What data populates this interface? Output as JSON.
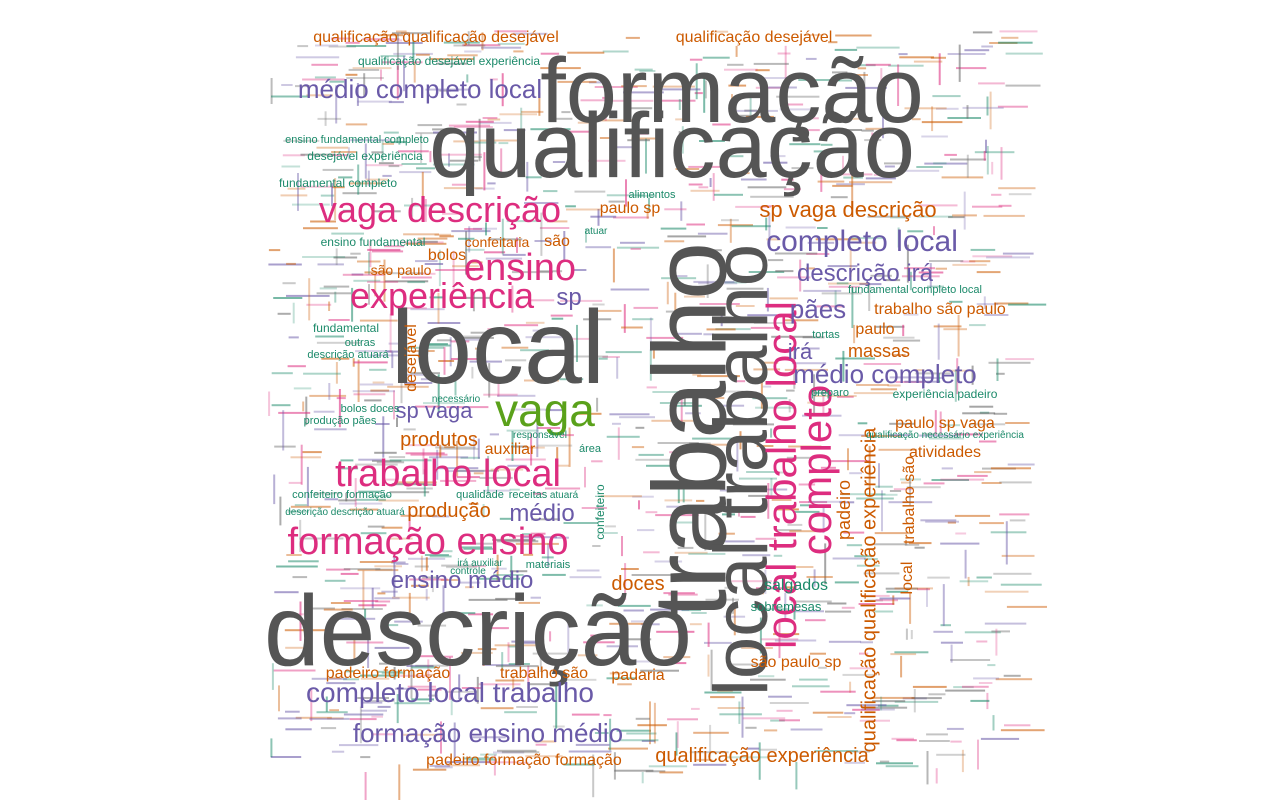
{
  "palette": {
    "gray": "#555555",
    "purple": "#6a5aa8",
    "magenta": "#dd2d7f",
    "green": "#5aa11a",
    "orange": "#cc5a00",
    "teal": "#1c8a6a"
  },
  "words": [
    {
      "id": "formacao",
      "text": "formação",
      "color": "gray"
    },
    {
      "id": "qualificacao",
      "text": "qualificação",
      "color": "gray"
    },
    {
      "id": "local",
      "text": "local",
      "color": "gray"
    },
    {
      "id": "descricao",
      "text": "descrição",
      "color": "gray"
    },
    {
      "id": "trabalho",
      "text": "trabalho",
      "color": "gray"
    },
    {
      "id": "local-trabalho-gray",
      "text": "local trabalho",
      "color": "gray"
    },
    {
      "id": "local-trabalho-local",
      "text": "local trabalho local",
      "color": "magenta"
    },
    {
      "id": "vaga",
      "text": "vaga",
      "color": "green"
    },
    {
      "id": "vaga-descricao",
      "text": "vaga descrição",
      "color": "magenta"
    },
    {
      "id": "ensino",
      "text": "ensino",
      "color": "magenta"
    },
    {
      "id": "experiencia",
      "text": "experiência",
      "color": "magenta"
    },
    {
      "id": "trabalho-local",
      "text": "trabalho local",
      "color": "magenta"
    },
    {
      "id": "formacao-ensino",
      "text": "formação ensino",
      "color": "magenta"
    },
    {
      "id": "completo",
      "text": "completo",
      "color": "magenta"
    },
    {
      "id": "completo-local",
      "text": "completo local",
      "color": "purple"
    },
    {
      "id": "completo-local-trabalho",
      "text": "completo local trabalho",
      "color": "purple"
    },
    {
      "id": "formacao-ensino-medio",
      "text": "formação ensino médio",
      "color": "purple"
    },
    {
      "id": "medio-completo-local",
      "text": "médio completo local",
      "color": "purple"
    },
    {
      "id": "medio-completo",
      "text": "médio completo",
      "color": "purple"
    },
    {
      "id": "descricao-ira",
      "text": "descrição irá",
      "color": "purple"
    },
    {
      "id": "paes",
      "text": "pães",
      "color": "purple"
    },
    {
      "id": "ira",
      "text": "irá",
      "color": "purple"
    },
    {
      "id": "sp-vaga",
      "text": "sp vaga",
      "color": "purple"
    },
    {
      "id": "sp",
      "text": "sp",
      "color": "purple"
    },
    {
      "id": "medio",
      "text": "médio",
      "color": "purple"
    },
    {
      "id": "ensino-medio",
      "text": "ensino médio",
      "color": "purple"
    },
    {
      "id": "sp-vaga-descricao",
      "text": "sp vaga descrição",
      "color": "orange"
    },
    {
      "id": "qualificacao-qualificacao-desejavel",
      "text": "qualificação qualificação desejável",
      "color": "orange"
    },
    {
      "id": "qualificacao-desejavel",
      "text": "qualificação desejável",
      "color": "orange"
    },
    {
      "id": "qualificacao-experiencia",
      "text": "qualificação experiência",
      "color": "orange"
    },
    {
      "id": "qualificacao-qualificacao-experiencia",
      "text": "qualificação qualificação experiência",
      "color": "orange"
    },
    {
      "id": "padeiro-formacao-formacao",
      "text": "padeiro formação formação",
      "color": "orange"
    },
    {
      "id": "padeiro-formacao",
      "text": "padeiro formação",
      "color": "orange"
    },
    {
      "id": "trabalho-sao",
      "text": "trabalho são",
      "color": "orange"
    },
    {
      "id": "padaria",
      "text": "padaria",
      "color": "orange"
    },
    {
      "id": "sao-paulo-sp",
      "text": "são paulo sp",
      "color": "orange"
    },
    {
      "id": "doces",
      "text": "doces",
      "color": "orange"
    },
    {
      "id": "producao",
      "text": "produção",
      "color": "orange"
    },
    {
      "id": "produtos",
      "text": "produtos",
      "color": "orange"
    },
    {
      "id": "auxiliar",
      "text": "auxiliar",
      "color": "orange"
    },
    {
      "id": "massas",
      "text": "massas",
      "color": "orange"
    },
    {
      "id": "paulo",
      "text": "paulo",
      "color": "orange"
    },
    {
      "id": "trabalho-sao-paulo",
      "text": "trabalho são paulo",
      "color": "orange"
    },
    {
      "id": "paulo-sp-vaga",
      "text": "paulo sp vaga",
      "color": "orange"
    },
    {
      "id": "atividades",
      "text": "atividades",
      "color": "orange"
    },
    {
      "id": "paulo-sp",
      "text": "paulo sp",
      "color": "orange"
    },
    {
      "id": "confeitaria",
      "text": "confeitaria",
      "color": "orange"
    },
    {
      "id": "sao",
      "text": "são",
      "color": "orange"
    },
    {
      "id": "bolos",
      "text": "bolos",
      "color": "orange"
    },
    {
      "id": "sao-paulo",
      "text": "são paulo",
      "color": "orange"
    },
    {
      "id": "padeiro",
      "text": "padeiro",
      "color": "orange"
    },
    {
      "id": "desejavel",
      "text": "desejável",
      "color": "orange"
    },
    {
      "id": "trabalho-sao-v",
      "text": "trabalho são",
      "color": "orange"
    },
    {
      "id": "local-v",
      "text": "local",
      "color": "orange"
    },
    {
      "id": "salgados",
      "text": "salgados",
      "color": "teal"
    },
    {
      "id": "sobremesas",
      "text": "sobremesas",
      "color": "teal"
    },
    {
      "id": "qualificacao-desejavel-experiencia",
      "text": "qualificação desejável experiência",
      "color": "teal"
    },
    {
      "id": "ensino-fundamental-completo",
      "text": "ensino fundamental completo",
      "color": "teal"
    },
    {
      "id": "desejavel-experiencia",
      "text": "desejável experiência",
      "color": "teal"
    },
    {
      "id": "fundamental-completo",
      "text": "fundamental completo",
      "color": "teal"
    },
    {
      "id": "ensino-fundamental",
      "text": "ensino fundamental",
      "color": "teal"
    },
    {
      "id": "fundamental",
      "text": "fundamental",
      "color": "teal"
    },
    {
      "id": "descricao-atuara",
      "text": "descrição atuará",
      "color": "teal"
    },
    {
      "id": "confeiteiro-formacao",
      "text": "confeiteiro formação",
      "color": "teal"
    },
    {
      "id": "descricao-descricao-atuara",
      "text": "descrição descrição atuará",
      "color": "teal"
    },
    {
      "id": "producao-paes",
      "text": "produção pães",
      "color": "teal"
    },
    {
      "id": "experiencia-padeiro",
      "text": "experiência padeiro",
      "color": "teal"
    },
    {
      "id": "fundamental-completo-local",
      "text": "fundamental completo local",
      "color": "teal"
    },
    {
      "id": "qualificacao-necessario-experiencia",
      "text": "qualificação necessário experiência",
      "color": "teal"
    },
    {
      "id": "qualidade",
      "text": "qualidade",
      "color": "teal"
    },
    {
      "id": "receitas",
      "text": "receitas",
      "color": "teal"
    },
    {
      "id": "atuara",
      "text": "atuará",
      "color": "teal"
    },
    {
      "id": "materiais",
      "text": "materiais",
      "color": "teal"
    },
    {
      "id": "ira-auxiliar",
      "text": "irá auxiliar",
      "color": "teal"
    },
    {
      "id": "outras",
      "text": "outras",
      "color": "teal"
    },
    {
      "id": "necessario",
      "text": "necessário",
      "color": "teal"
    },
    {
      "id": "bolos-doces",
      "text": "bolos doces",
      "color": "teal"
    },
    {
      "id": "area",
      "text": "área",
      "color": "teal"
    },
    {
      "id": "preparo",
      "text": "preparo",
      "color": "teal"
    },
    {
      "id": "tortas",
      "text": "tortas",
      "color": "teal"
    },
    {
      "id": "confeiteiro",
      "text": "confeiteiro",
      "color": "teal"
    },
    {
      "id": "alimentos",
      "text": "alimentos",
      "color": "teal"
    },
    {
      "id": "atuar",
      "text": "atuar",
      "color": "teal"
    },
    {
      "id": "responsavel",
      "text": "responsável",
      "color": "teal"
    },
    {
      "id": "controle",
      "text": "controle",
      "color": "teal"
    }
  ]
}
